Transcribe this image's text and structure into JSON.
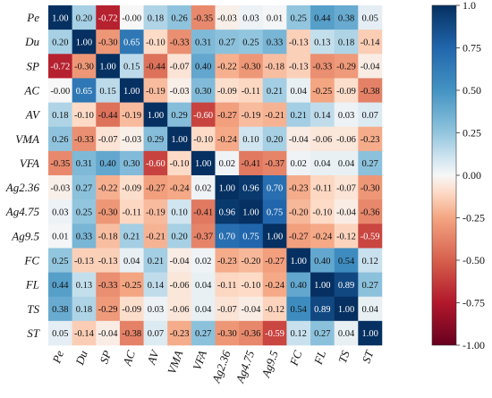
{
  "chart_data": {
    "type": "heatmap",
    "title": "",
    "xlabel": "",
    "ylabel": "",
    "row_labels": [
      "Pe",
      "Du",
      "SP",
      "AC",
      "AV",
      "VMA",
      "VFA",
      "Ag2.36",
      "Ag4.75",
      "Ag9.5",
      "FC",
      "FL",
      "TS",
      "ST"
    ],
    "col_labels": [
      "Pe",
      "Du",
      "SP",
      "AC",
      "AV",
      "VMA",
      "VFA",
      "Ag2.36",
      "Ag4.75",
      "Ag9.5",
      "FC",
      "FL",
      "TS",
      "ST"
    ],
    "values": [
      [
        1.0,
        0.2,
        -0.72,
        -0.0,
        0.18,
        0.26,
        -0.35,
        -0.03,
        0.03,
        0.01,
        0.25,
        0.44,
        0.38,
        0.05
      ],
      [
        0.2,
        1.0,
        -0.3,
        0.65,
        -0.1,
        -0.33,
        0.31,
        0.27,
        0.25,
        0.33,
        -0.13,
        0.13,
        0.18,
        -0.14
      ],
      [
        -0.72,
        -0.3,
        1.0,
        0.15,
        -0.44,
        -0.07,
        0.4,
        -0.22,
        -0.3,
        -0.18,
        -0.13,
        -0.33,
        -0.29,
        -0.04
      ],
      [
        -0.0,
        0.65,
        0.15,
        1.0,
        -0.19,
        -0.03,
        0.3,
        -0.09,
        -0.11,
        0.21,
        0.04,
        -0.25,
        -0.09,
        -0.38
      ],
      [
        0.18,
        -0.1,
        -0.44,
        -0.19,
        1.0,
        0.29,
        -0.6,
        -0.27,
        -0.19,
        -0.21,
        0.21,
        0.14,
        0.03,
        0.07
      ],
      [
        0.26,
        -0.33,
        -0.07,
        -0.03,
        0.29,
        1.0,
        -0.1,
        -0.24,
        0.1,
        0.2,
        -0.04,
        -0.06,
        -0.06,
        -0.23
      ],
      [
        -0.35,
        0.31,
        0.4,
        0.3,
        -0.6,
        -0.1,
        1.0,
        0.02,
        -0.41,
        -0.37,
        0.02,
        0.04,
        0.04,
        0.27
      ],
      [
        -0.03,
        0.27,
        -0.22,
        -0.09,
        -0.27,
        -0.24,
        0.02,
        1.0,
        0.96,
        0.7,
        -0.23,
        -0.11,
        -0.07,
        -0.3
      ],
      [
        0.03,
        0.25,
        -0.3,
        -0.11,
        -0.19,
        0.1,
        -0.41,
        0.96,
        1.0,
        0.75,
        -0.2,
        -0.1,
        -0.04,
        -0.36
      ],
      [
        0.01,
        0.33,
        -0.18,
        0.21,
        -0.21,
        0.2,
        -0.37,
        0.7,
        0.75,
        1.0,
        -0.27,
        -0.24,
        -0.12,
        -0.59
      ],
      [
        0.25,
        -0.13,
        -0.13,
        0.04,
        0.21,
        -0.04,
        0.02,
        -0.23,
        -0.2,
        -0.27,
        1.0,
        0.4,
        0.54,
        0.12
      ],
      [
        0.44,
        0.13,
        -0.33,
        -0.25,
        0.14,
        -0.06,
        0.04,
        -0.11,
        -0.1,
        -0.24,
        0.4,
        1.0,
        0.89,
        0.27
      ],
      [
        0.38,
        0.18,
        -0.29,
        -0.09,
        0.03,
        -0.06,
        0.04,
        -0.07,
        -0.04,
        -0.12,
        0.54,
        0.89,
        1.0,
        0.04
      ],
      [
        0.05,
        -0.14,
        -0.04,
        -0.38,
        0.07,
        -0.23,
        0.27,
        -0.3,
        -0.36,
        -0.59,
        0.12,
        0.27,
        0.04,
        1.0
      ]
    ],
    "value_labels": [
      [
        "1.00",
        "0.20",
        "-0.72",
        "-0.00",
        "0.18",
        "0.26",
        "-0.35",
        "-0.03",
        "0.03",
        "0.01",
        "0.25",
        "0.44",
        "0.38",
        "0.05"
      ],
      [
        "0.20",
        "1.00",
        "-0.30",
        "0.65",
        "-0.10",
        "-0.33",
        "0.31",
        "0.27",
        "0.25",
        "0.33",
        "-0.13",
        "0.13",
        "0.18",
        "-0.14"
      ],
      [
        "-0.72",
        "-0.30",
        "1.00",
        "0.15",
        "-0.44",
        "-0.07",
        "0.40",
        "-0.22",
        "-0.30",
        "-0.18",
        "-0.13",
        "-0.33",
        "-0.29",
        "-0.04"
      ],
      [
        "-0.00",
        "0.65",
        "0.15",
        "1.00",
        "-0.19",
        "-0.03",
        "0.30",
        "-0.09",
        "-0.11",
        "0.21",
        "0.04",
        "-0.25",
        "-0.09",
        "-0.38"
      ],
      [
        "0.18",
        "-0.10",
        "-0.44",
        "-0.19",
        "1.00",
        "0.29",
        "-0.60",
        "-0.27",
        "-0.19",
        "-0.21",
        "0.21",
        "0.14",
        "0.03",
        "0.07"
      ],
      [
        "0.26",
        "-0.33",
        "-0.07",
        "-0.03",
        "0.29",
        "1.00",
        "-0.10",
        "-0.24",
        "0.10",
        "0.20",
        "-0.04",
        "-0.06",
        "-0.06",
        "-0.23"
      ],
      [
        "-0.35",
        "0.31",
        "0.40",
        "0.30",
        "-0.60",
        "-0.10",
        "1.00",
        "0.02",
        "-0.41",
        "-0.37",
        "0.02",
        "0.04",
        "0.04",
        "0.27"
      ],
      [
        "-0.03",
        "0.27",
        "-0.22",
        "-0.09",
        "-0.27",
        "-0.24",
        "0.02",
        "1.00",
        "0.96",
        "0.70",
        "-0.23",
        "-0.11",
        "-0.07",
        "-0.30"
      ],
      [
        "0.03",
        "0.25",
        "-0.30",
        "-0.11",
        "-0.19",
        "0.10",
        "-0.41",
        "0.96",
        "1.00",
        "0.75",
        "-0.20",
        "-0.10",
        "-0.04",
        "-0.36"
      ],
      [
        "0.01",
        "0.33",
        "-0.18",
        "0.21",
        "-0.21",
        "0.20",
        "-0.37",
        "0.70",
        "0.75",
        "1.00",
        "-0.27",
        "-0.24",
        "-0.12",
        "-0.59"
      ],
      [
        "0.25",
        "-0.13",
        "-0.13",
        "0.04",
        "0.21",
        "-0.04",
        "0.02",
        "-0.23",
        "-0.20",
        "-0.27",
        "1.00",
        "0.40",
        "0.54",
        "0.12"
      ],
      [
        "0.44",
        "0.13",
        "-0.33",
        "-0.25",
        "0.14",
        "-0.06",
        "0.04",
        "-0.11",
        "-0.10",
        "-0.24",
        "0.40",
        "1.00",
        "0.89",
        "0.27"
      ],
      [
        "0.38",
        "0.18",
        "-0.29",
        "-0.09",
        "0.03",
        "-0.06",
        "0.04",
        "-0.07",
        "-0.04",
        "-0.12",
        "0.54",
        "0.89",
        "1.00",
        "0.04"
      ],
      [
        "0.05",
        "-0.14",
        "-0.04",
        "-0.38",
        "0.07",
        "-0.23",
        "0.27",
        "-0.30",
        "-0.36",
        "-0.59",
        "0.12",
        "0.27",
        "0.04",
        "1.00"
      ]
    ],
    "vmin": -1.0,
    "vmax": 1.0,
    "colormap": "RdBu",
    "colorbar": {
      "ticks": [
        1.0,
        0.75,
        0.5,
        0.25,
        0.0,
        -0.25,
        -0.5,
        -0.75,
        -1.0
      ],
      "tick_labels": [
        "1.0",
        "0.75",
        "0.50",
        "0.25",
        "0.00",
        "-0.25",
        "-0.50",
        "-0.75",
        "-1.00"
      ],
      "placement": "right"
    },
    "colors": {
      "positive_max": "#053061",
      "negative_max": "#67001f",
      "neutral": "#f7f7f7"
    },
    "grid": false
  }
}
